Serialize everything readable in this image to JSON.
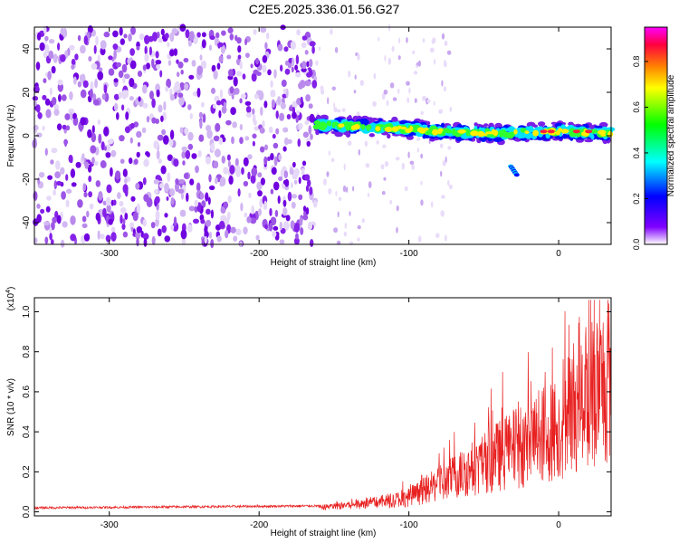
{
  "title": "C2E5.2025.336.01.56.G27",
  "chart_data": [
    {
      "type": "heatmap",
      "xlabel": "Height of straight line (km)",
      "ylabel": "Frequency (Hz)",
      "xlim": [
        -350,
        35
      ],
      "ylim": [
        -50,
        50
      ],
      "xticks": [
        -300,
        -200,
        -100,
        0
      ],
      "yticks": [
        -40,
        -20,
        0,
        20,
        40
      ],
      "colorbar": {
        "label": "Normalized spectral amplitude",
        "range": [
          0.0,
          0.95
        ],
        "ticks": [
          0.0,
          0.2,
          0.4,
          0.6,
          0.8
        ],
        "colormap": [
          "#ff00ff",
          "#ff0040",
          "#ff8000",
          "#ffff00",
          "#00ff00",
          "#00ffff",
          "#0000ff",
          "#8000ff",
          "#ffffff"
        ]
      },
      "features": {
        "noise_region_x": [
          -350,
          -162
        ],
        "noise_amplitude": 0.1,
        "signal_band_center": [
          [
            -162,
            5
          ],
          [
            -120,
            4
          ],
          [
            -80,
            2
          ],
          [
            -40,
            1
          ],
          [
            0,
            2
          ],
          [
            35,
            1
          ]
        ],
        "signal_band_halfwidth_hz": 4,
        "branch": [
          [
            -32,
            -14
          ],
          [
            -28,
            -18
          ]
        ]
      }
    },
    {
      "type": "line",
      "xlabel": "Height of straight line (km)",
      "ylabel": "SNR (10 * v/v)",
      "yscale_label": "(x10",
      "yscale_exponent": "4",
      "yscale_suffix": ")",
      "xlim": [
        -350,
        35
      ],
      "ylim": [
        -0.02,
        1.07
      ],
      "xticks": [
        -300,
        -200,
        -100,
        0
      ],
      "yticks": [
        0.0,
        0.2,
        0.4,
        0.6,
        0.8,
        1.0
      ],
      "series": [
        {
          "name": "SNR",
          "color": "#e82020",
          "envelope": [
            [
              -350,
              0.02
            ],
            [
              -160,
              0.03
            ],
            [
              -140,
              0.05
            ],
            [
              -120,
              0.07
            ],
            [
              -100,
              0.1
            ],
            [
              -80,
              0.2
            ],
            [
              -60,
              0.3
            ],
            [
              -40,
              0.4
            ],
            [
              -20,
              0.5
            ],
            [
              0,
              0.6
            ],
            [
              10,
              0.75
            ],
            [
              20,
              0.85
            ],
            [
              35,
              0.95
            ]
          ]
        }
      ]
    }
  ]
}
